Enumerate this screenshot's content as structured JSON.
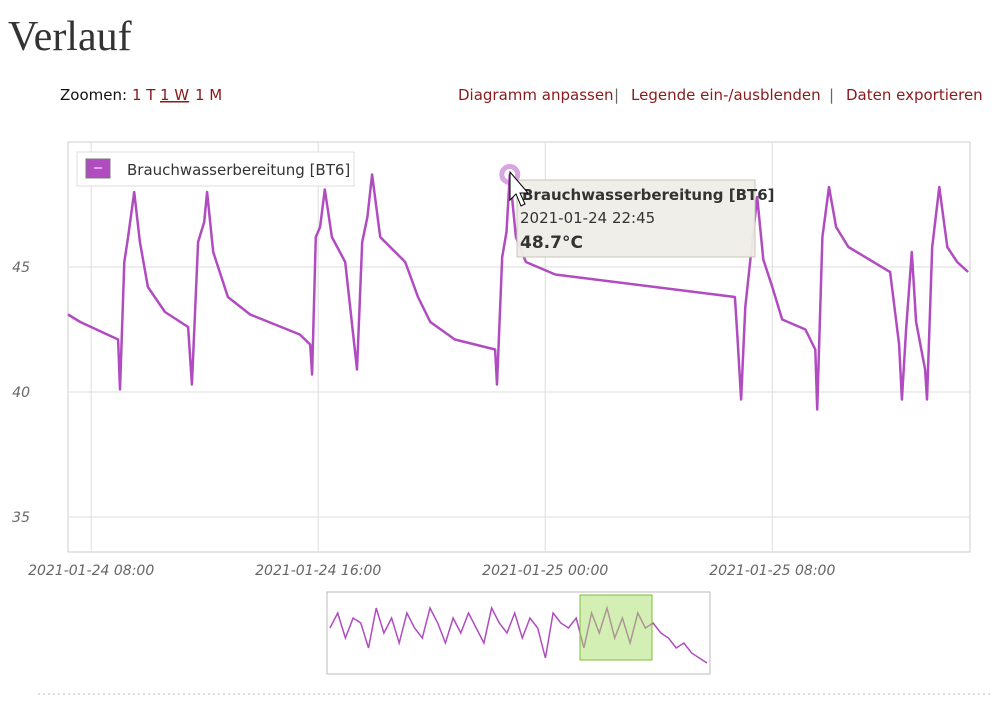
{
  "header": {
    "title": "Verlauf"
  },
  "toolbar": {
    "zoom_label": "Zoomen:",
    "zoom_options": [
      "1 T",
      "1 W",
      "1 M"
    ],
    "actions": [
      "Diagramm anpassen",
      "|",
      "Legende ein-/ausblenden",
      "|",
      "Daten exportieren"
    ]
  },
  "chart_data": {
    "type": "line",
    "x": [
      "2021-01-24 07:11",
      "2021-01-24 07:37",
      "2021-01-24 08:57",
      "2021-01-24 09:01",
      "2021-01-24 09:10",
      "2021-01-24 09:18",
      "2021-01-24 09:31",
      "2021-01-24 09:43",
      "2021-01-24 10:00",
      "2021-01-24 10:36",
      "2021-01-24 11:25",
      "2021-01-24 11:33",
      "2021-01-24 11:46",
      "2021-01-24 11:59",
      "2021-01-24 12:05",
      "2021-01-24 12:18",
      "2021-01-24 12:49",
      "2021-01-24 13:36",
      "2021-01-24 15:21",
      "2021-01-24 15:43",
      "2021-01-24 15:47",
      "2021-01-24 15:55",
      "2021-01-24 16:04",
      "2021-01-24 16:14",
      "2021-01-24 16:29",
      "2021-01-24 16:57",
      "2021-01-24 17:22",
      "2021-01-24 17:33",
      "2021-01-24 17:44",
      "2021-01-24 17:54",
      "2021-01-24 18:11",
      "2021-01-24 19:04",
      "2021-01-24 19:31",
      "2021-01-24 19:57",
      "2021-01-24 20:49",
      "2021-01-24 22:14",
      "2021-01-24 22:18",
      "2021-01-24 22:29",
      "2021-01-24 22:38",
      "2021-01-24 22:45",
      "2021-01-24 22:58",
      "2021-01-24 23:19",
      "2021-01-25 00:21",
      "2021-01-25 06:41",
      "2021-01-25 06:46",
      "2021-01-25 06:54",
      "2021-01-25 07:03",
      "2021-01-25 07:13",
      "2021-01-25 07:28",
      "2021-01-25 07:41",
      "2021-01-25 08:00",
      "2021-01-25 08:21",
      "2021-01-25 09:10",
      "2021-01-25 09:31",
      "2021-01-25 09:35",
      "2021-01-25 09:46",
      "2021-01-25 10:00",
      "2021-01-25 10:15",
      "2021-01-25 10:41",
      "2021-01-25 12:09",
      "2021-01-25 12:28",
      "2021-01-25 12:34",
      "2021-01-25 12:43",
      "2021-01-25 12:55",
      "2021-01-25 13:04",
      "2021-01-25 13:23",
      "2021-01-25 13:27",
      "2021-01-25 13:38",
      "2021-01-25 13:53",
      "2021-01-25 14:10",
      "2021-01-25 14:31",
      "2021-01-25 14:54"
    ],
    "series": [
      {
        "name": "Brauchwasserbereitung [BT6]",
        "color": "#b04cc0",
        "values": [
          43.1,
          42.8,
          42.1,
          40.1,
          45.2,
          46.2,
          48.0,
          46.0,
          44.2,
          43.2,
          42.6,
          40.3,
          46.0,
          46.8,
          48.0,
          45.6,
          43.8,
          43.1,
          42.3,
          41.9,
          40.7,
          46.2,
          46.6,
          48.1,
          46.2,
          45.2,
          40.9,
          46.0,
          47.0,
          48.7,
          46.2,
          45.2,
          43.8,
          42.8,
          42.1,
          41.7,
          40.3,
          45.4,
          46.4,
          48.7,
          46.2,
          45.2,
          44.7,
          43.8,
          42.3,
          39.7,
          43.4,
          45.2,
          47.8,
          45.3,
          44.2,
          42.9,
          42.5,
          41.7,
          39.3,
          46.2,
          48.2,
          46.6,
          45.8,
          44.8,
          41.9,
          39.7,
          42.5,
          45.6,
          42.8,
          40.9,
          39.7,
          45.8,
          48.2,
          45.8,
          45.2,
          44.8
        ]
      }
    ],
    "xlim": [
      "2021-01-24 07:11",
      "2021-01-25 14:58"
    ],
    "xticks": [
      "2021-01-24 08:00",
      "2021-01-24 16:00",
      "2021-01-25 00:00",
      "2021-01-25 08:00"
    ],
    "ylim": [
      33.6,
      50
    ],
    "yticks": [
      35,
      40,
      45
    ],
    "grid": true,
    "tooltip": {
      "title": "Brauchwasserbereitung [BT6]",
      "time": "2021-01-24 22:45",
      "value": "48.7°C"
    }
  },
  "navigator": {
    "values": [
      44,
      47,
      42,
      46,
      45,
      40,
      48,
      43,
      46,
      41,
      47,
      44,
      42,
      48,
      45,
      41,
      46,
      43,
      47,
      44,
      41,
      48,
      45,
      43,
      47,
      42,
      46,
      44,
      38,
      47,
      45,
      44,
      46,
      40,
      47,
      43,
      48,
      42,
      46,
      41,
      47,
      44,
      45,
      43,
      42,
      40,
      41,
      39,
      38,
      37
    ],
    "ylim": [
      36,
      50
    ]
  }
}
